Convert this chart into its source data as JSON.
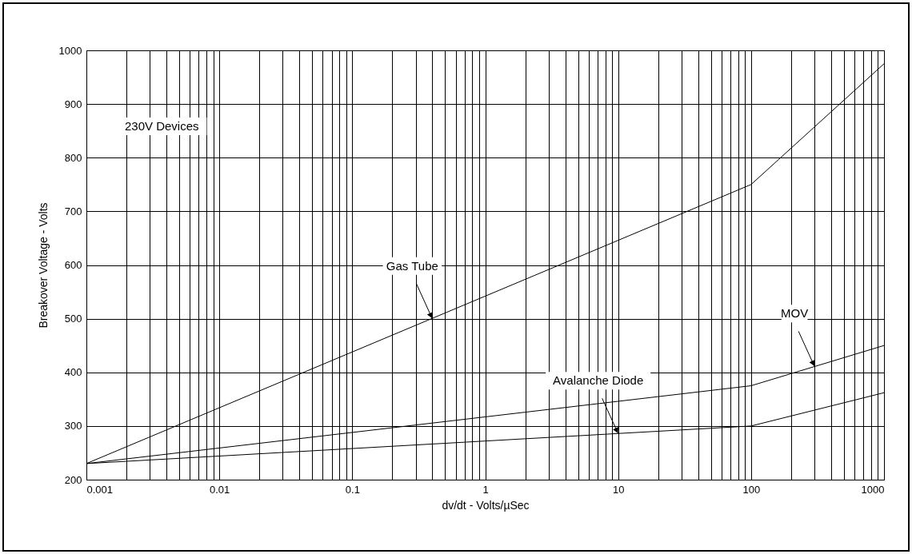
{
  "chart_data": {
    "type": "line",
    "xlabel": "dv/dt - Volts/µSec",
    "ylabel": "Breakover Voltage - Volts",
    "log": "x",
    "xlim": [
      0.001,
      1000
    ],
    "xticks": [
      0.001,
      {
        "value": 0.002,
        "label": null
      },
      {
        "value": 0.003,
        "label": null
      },
      {
        "value": 0.004,
        "label": null
      },
      {
        "value": 0.005,
        "label": null
      },
      {
        "value": 0.006,
        "label": null
      },
      {
        "value": 0.007,
        "label": null
      },
      {
        "value": 0.008,
        "label": null
      },
      {
        "value": 0.009,
        "label": null
      },
      0.01,
      {
        "value": 0.02,
        "label": null
      },
      {
        "value": 0.03,
        "label": null
      },
      {
        "value": 0.04,
        "label": null
      },
      {
        "value": 0.05,
        "label": null
      },
      {
        "value": 0.06,
        "label": null
      },
      {
        "value": 0.07,
        "label": null
      },
      {
        "value": 0.08,
        "label": null
      },
      {
        "value": 0.09,
        "label": null
      },
      0.1,
      {
        "value": 0.2,
        "label": null
      },
      {
        "value": 0.3,
        "label": null
      },
      {
        "value": 0.4,
        "label": null
      },
      {
        "value": 0.5,
        "label": null
      },
      {
        "value": 0.6,
        "label": null
      },
      {
        "value": 0.7,
        "label": null
      },
      {
        "value": 0.8,
        "label": null
      },
      {
        "value": 0.9,
        "label": null
      },
      1,
      {
        "value": 2,
        "label": null
      },
      {
        "value": 3,
        "label": null
      },
      {
        "value": 4,
        "label": null
      },
      {
        "value": 5,
        "label": null
      },
      {
        "value": 6,
        "label": null
      },
      {
        "value": 7,
        "label": null
      },
      {
        "value": 8,
        "label": null
      },
      {
        "value": 9,
        "label": null
      },
      10,
      {
        "value": 20,
        "label": null
      },
      {
        "value": 30,
        "label": null
      },
      {
        "value": 40,
        "label": null
      },
      {
        "value": 50,
        "label": null
      },
      {
        "value": 60,
        "label": null
      },
      {
        "value": 70,
        "label": null
      },
      {
        "value": 80,
        "label": null
      },
      {
        "value": 90,
        "label": null
      },
      100,
      {
        "value": 200,
        "label": null
      },
      {
        "value": 300,
        "label": null
      },
      {
        "value": 400,
        "label": null
      },
      {
        "value": 500,
        "label": null
      },
      {
        "value": 600,
        "label": null
      },
      {
        "value": 700,
        "label": null
      },
      {
        "value": 800,
        "label": null
      },
      {
        "value": 900,
        "label": null
      },
      1000
    ],
    "ylim": [
      200,
      1000
    ],
    "yticks": [
      200,
      300,
      400,
      500,
      600,
      700,
      800,
      900,
      1000
    ],
    "grid": true,
    "marker": "none",
    "line_style": "solid",
    "series": [
      {
        "color": "#000000",
        "x": [
          0.001,
          100,
          1000
        ],
        "values": [
          230,
          750,
          975
        ]
      },
      {
        "color": "#000000",
        "x": [
          0.001,
          100,
          1000
        ],
        "values": [
          230,
          375,
          450
        ]
      },
      {
        "color": "#000000",
        "x": [
          0.001,
          100,
          1000
        ],
        "values": [
          230,
          300,
          362
        ]
      }
    ],
    "annotations": [
      "230V Devices",
      {
        "text": "Gas Tube",
        "x": 0.4,
        "y": 500
      },
      {
        "text": "MOV",
        "x": 300,
        "y": 411
      },
      {
        "text": "Avalanche Diode",
        "x": 10,
        "y": 286
      }
    ]
  }
}
